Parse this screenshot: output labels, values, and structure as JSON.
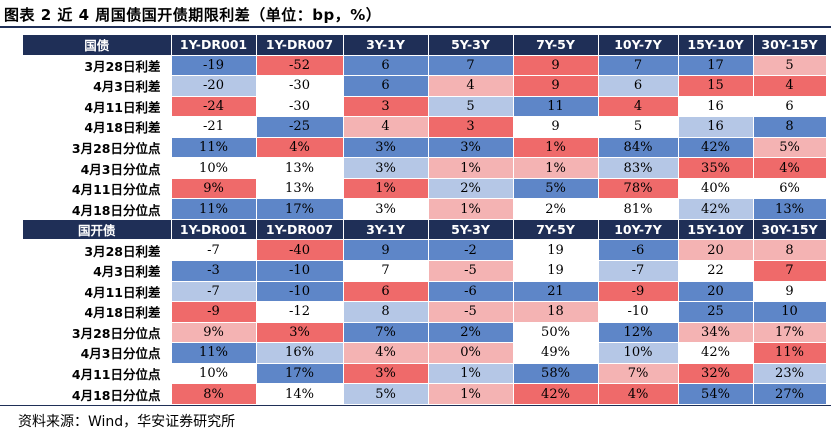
{
  "title": "图表 2  近 4 周国债国开债期限利差（单位：bp，%）",
  "source": "资料来源：Wind，华安证券研究所",
  "colors": {
    "header_bg": "#1f2f57",
    "blue_dark": "#5e86c8",
    "blue_light": "#b5c7e6",
    "white": "#ffffff",
    "red_light": "#f4b3b3",
    "red_dark": "#ef6a6a"
  },
  "columns": [
    "1Y-DR001",
    "1Y-DR007",
    "3Y-1Y",
    "5Y-3Y",
    "7Y-5Y",
    "10Y-7Y",
    "15Y-10Y",
    "30Y-15Y"
  ],
  "sections": [
    {
      "name": "国债",
      "rows": [
        {
          "label": "3月28日利差",
          "cells": [
            [
              "-19",
              "bd"
            ],
            [
              "-52",
              "rd"
            ],
            [
              "6",
              "bd"
            ],
            [
              "7",
              "bd"
            ],
            [
              "9",
              "rd"
            ],
            [
              "7",
              "bd"
            ],
            [
              "17",
              "bd"
            ],
            [
              "5",
              "rl"
            ]
          ]
        },
        {
          "label": "4月3日利差",
          "cells": [
            [
              "-20",
              "bl"
            ],
            [
              "-30",
              "w"
            ],
            [
              "6",
              "bd"
            ],
            [
              "4",
              "rl"
            ],
            [
              "9",
              "rd"
            ],
            [
              "6",
              "bl"
            ],
            [
              "15",
              "rd"
            ],
            [
              "4",
              "rd"
            ]
          ]
        },
        {
          "label": "4月11日利差",
          "cells": [
            [
              "-24",
              "rd"
            ],
            [
              "-30",
              "w"
            ],
            [
              "3",
              "rd"
            ],
            [
              "5",
              "bl"
            ],
            [
              "11",
              "bd"
            ],
            [
              "4",
              "rd"
            ],
            [
              "16",
              "w"
            ],
            [
              "6",
              "w"
            ]
          ]
        },
        {
          "label": "4月18日利差",
          "cells": [
            [
              "-21",
              "w"
            ],
            [
              "-25",
              "bd"
            ],
            [
              "4",
              "rl"
            ],
            [
              "3",
              "rd"
            ],
            [
              "9",
              "w"
            ],
            [
              "5",
              "w"
            ],
            [
              "16",
              "bl"
            ],
            [
              "8",
              "bd"
            ]
          ]
        },
        {
          "label": "3月28日分位点",
          "cells": [
            [
              "11%",
              "bd"
            ],
            [
              "4%",
              "rd"
            ],
            [
              "3%",
              "bd"
            ],
            [
              "3%",
              "bd"
            ],
            [
              "1%",
              "rd"
            ],
            [
              "84%",
              "bd"
            ],
            [
              "42%",
              "bd"
            ],
            [
              "5%",
              "rl"
            ]
          ]
        },
        {
          "label": "4月3日分位点",
          "cells": [
            [
              "10%",
              "w"
            ],
            [
              "13%",
              "w"
            ],
            [
              "3%",
              "bl"
            ],
            [
              "1%",
              "rl"
            ],
            [
              "1%",
              "rl"
            ],
            [
              "83%",
              "bl"
            ],
            [
              "35%",
              "rd"
            ],
            [
              "4%",
              "rd"
            ]
          ]
        },
        {
          "label": "4月11日分位点",
          "cells": [
            [
              "9%",
              "rd"
            ],
            [
              "13%",
              "w"
            ],
            [
              "1%",
              "rd"
            ],
            [
              "2%",
              "bl"
            ],
            [
              "5%",
              "bd"
            ],
            [
              "78%",
              "rd"
            ],
            [
              "40%",
              "w"
            ],
            [
              "6%",
              "w"
            ]
          ]
        },
        {
          "label": "4月18日分位点",
          "cells": [
            [
              "11%",
              "bd"
            ],
            [
              "17%",
              "bd"
            ],
            [
              "3%",
              "w"
            ],
            [
              "1%",
              "rl"
            ],
            [
              "2%",
              "w"
            ],
            [
              "81%",
              "w"
            ],
            [
              "42%",
              "bl"
            ],
            [
              "13%",
              "bd"
            ]
          ]
        }
      ]
    },
    {
      "name": "国开债",
      "rows": [
        {
          "label": "3月28日利差",
          "cells": [
            [
              "-7",
              "w"
            ],
            [
              "-40",
              "rd"
            ],
            [
              "9",
              "bd"
            ],
            [
              "-2",
              "bd"
            ],
            [
              "19",
              "w"
            ],
            [
              "-6",
              "bd"
            ],
            [
              "20",
              "rl"
            ],
            [
              "8",
              "rl"
            ]
          ]
        },
        {
          "label": "4月3日利差",
          "cells": [
            [
              "-3",
              "bd"
            ],
            [
              "-10",
              "bd"
            ],
            [
              "7",
              "w"
            ],
            [
              "-5",
              "rl"
            ],
            [
              "19",
              "w"
            ],
            [
              "-7",
              "bl"
            ],
            [
              "22",
              "w"
            ],
            [
              "7",
              "rd"
            ]
          ]
        },
        {
          "label": "4月11日利差",
          "cells": [
            [
              "-7",
              "bl"
            ],
            [
              "-10",
              "bd"
            ],
            [
              "6",
              "rd"
            ],
            [
              "-6",
              "bd"
            ],
            [
              "21",
              "bd"
            ],
            [
              "-9",
              "rd"
            ],
            [
              "20",
              "bd"
            ],
            [
              "9",
              "w"
            ]
          ]
        },
        {
          "label": "4月18日利差",
          "cells": [
            [
              "-9",
              "rd"
            ],
            [
              "-12",
              "w"
            ],
            [
              "8",
              "bl"
            ],
            [
              "-5",
              "rl"
            ],
            [
              "18",
              "rl"
            ],
            [
              "-10",
              "w"
            ],
            [
              "25",
              "bd"
            ],
            [
              "10",
              "bd"
            ]
          ]
        },
        {
          "label": "3月28日分位点",
          "cells": [
            [
              "9%",
              "rl"
            ],
            [
              "3%",
              "rd"
            ],
            [
              "7%",
              "bd"
            ],
            [
              "2%",
              "bd"
            ],
            [
              "50%",
              "w"
            ],
            [
              "12%",
              "bd"
            ],
            [
              "34%",
              "rl"
            ],
            [
              "17%",
              "rl"
            ]
          ]
        },
        {
          "label": "4月3日分位点",
          "cells": [
            [
              "11%",
              "bd"
            ],
            [
              "16%",
              "bl"
            ],
            [
              "4%",
              "rl"
            ],
            [
              "0%",
              "rl"
            ],
            [
              "49%",
              "w"
            ],
            [
              "10%",
              "bl"
            ],
            [
              "42%",
              "w"
            ],
            [
              "11%",
              "rd"
            ]
          ]
        },
        {
          "label": "4月11日分位点",
          "cells": [
            [
              "10%",
              "w"
            ],
            [
              "17%",
              "bd"
            ],
            [
              "3%",
              "rd"
            ],
            [
              "1%",
              "bl"
            ],
            [
              "58%",
              "bd"
            ],
            [
              "7%",
              "rl"
            ],
            [
              "32%",
              "rd"
            ],
            [
              "23%",
              "bl"
            ]
          ]
        },
        {
          "label": "4月18日分位点",
          "cells": [
            [
              "8%",
              "rd"
            ],
            [
              "14%",
              "w"
            ],
            [
              "5%",
              "bl"
            ],
            [
              "1%",
              "rl"
            ],
            [
              "42%",
              "rd"
            ],
            [
              "4%",
              "rd"
            ],
            [
              "54%",
              "bd"
            ],
            [
              "27%",
              "bd"
            ]
          ]
        }
      ]
    }
  ]
}
